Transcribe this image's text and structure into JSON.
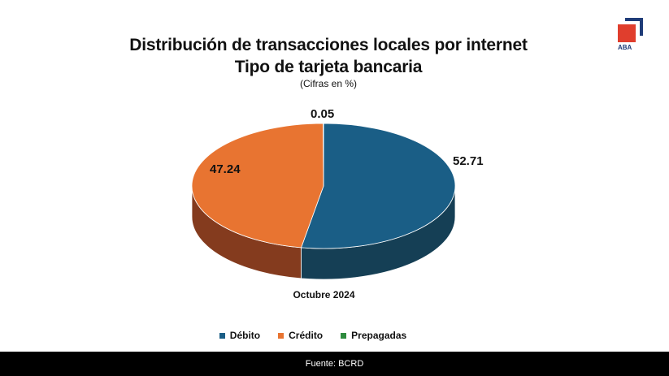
{
  "header": {
    "title_line1": "Distribución de transacciones locales por internet",
    "title_line2": "Tipo de tarjeta bancaria",
    "subtitle": "(Cifras en %)"
  },
  "logo": {
    "text": "ABA",
    "colors": {
      "square": "#e03e2d",
      "corner": "#1f3c78"
    }
  },
  "chart_data": {
    "type": "pie",
    "title": "Distribución de transacciones locales por internet — Tipo de tarjeta bancaria",
    "unit": "%",
    "period": "Octubre 2024",
    "legend_position": "bottom",
    "three_d": true,
    "slices": [
      {
        "name": "Débito",
        "value": 52.71,
        "label": "52.71",
        "color": "#1a5e86",
        "side_color": "#153f55"
      },
      {
        "name": "Crédito",
        "value": 47.24,
        "label": "47.24",
        "color": "#e87431",
        "side_color": "#843b1e"
      },
      {
        "name": "Prepagadas",
        "value": 0.05,
        "label": "0.05",
        "color": "#2e8b3e",
        "side_color": "#1d5a28"
      }
    ]
  },
  "footer": {
    "source": "Fuente: BCRD"
  }
}
